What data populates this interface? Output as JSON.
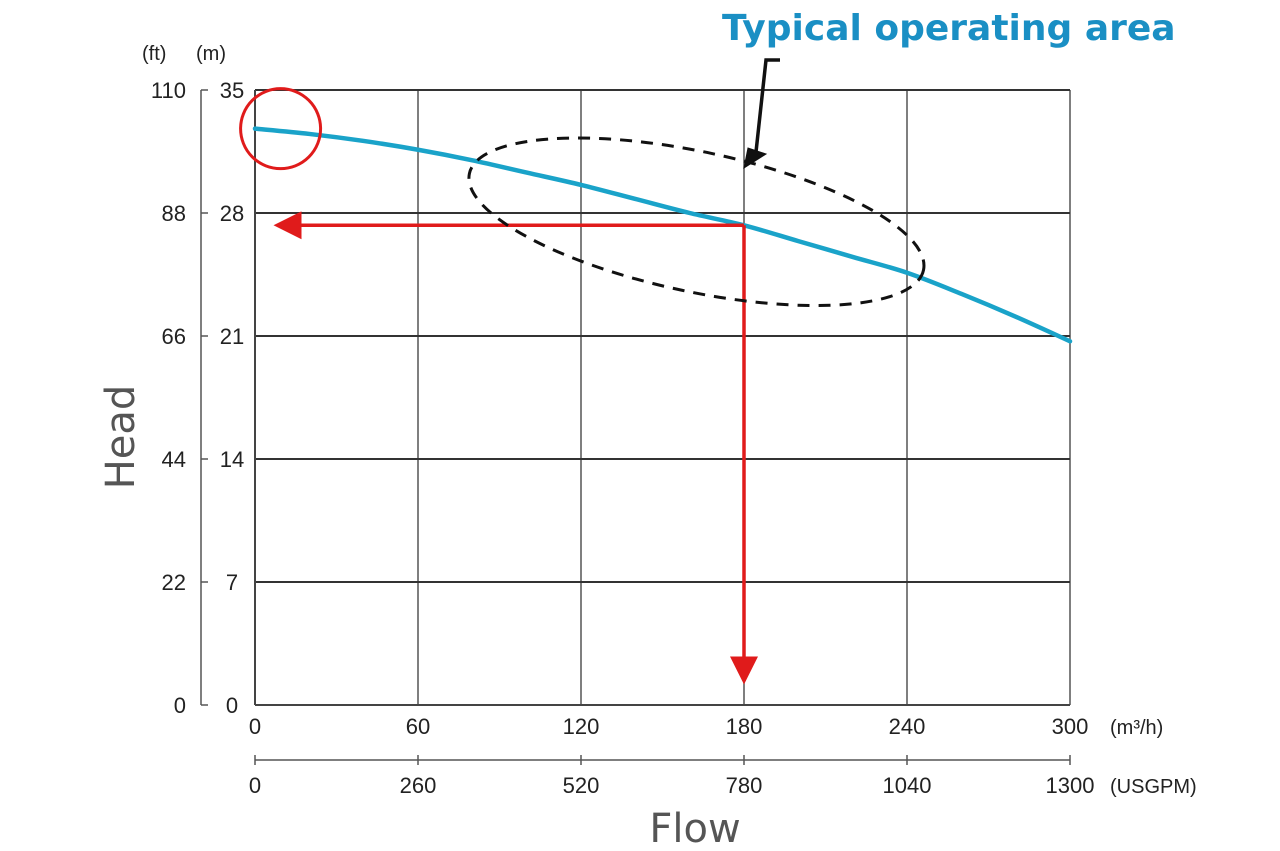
{
  "chart_data": {
    "type": "line",
    "title": "",
    "xlabel": "Flow",
    "ylabel": "Head",
    "x_unit_primary": "(m³/h)",
    "x_unit_secondary": "(USGPM)",
    "y_unit_primary": "(m)",
    "y_unit_secondary": "(ft)",
    "x_ticks_primary": [
      "0",
      "60",
      "120",
      "180",
      "240",
      "300"
    ],
    "x_ticks_secondary": [
      "0",
      "260",
      "520",
      "780",
      "1040",
      "1300"
    ],
    "y_ticks_primary": [
      "0",
      "7",
      "14",
      "21",
      "28",
      "35"
    ],
    "y_ticks_secondary": [
      "0",
      "22",
      "44",
      "66",
      "88",
      "110"
    ],
    "xlim": [
      0,
      300
    ],
    "ylim": [
      0,
      35
    ],
    "grid": true,
    "series": [
      {
        "color": "#1aa3c9",
        "x": [
          0,
          20,
          40,
          60,
          80,
          100,
          120,
          140,
          160,
          180,
          200,
          220,
          240,
          260,
          280,
          300
        ],
        "y": [
          32.8,
          32.5,
          32.1,
          31.6,
          31.0,
          30.3,
          29.6,
          28.8,
          28.0,
          27.3,
          26.4,
          25.5,
          24.6,
          23.4,
          22.1,
          20.7
        ]
      }
    ],
    "operating_point": {
      "flow": 180,
      "head": 27.3,
      "color": "#e01b1b"
    },
    "annotations": {
      "operating_area_label": "Typical operating area",
      "operating_area_color": "#1a8fc4",
      "shutoff_marker": {
        "x": 5,
        "y": 32.8,
        "color": "#e01b1b"
      },
      "operating_area_ellipse": {
        "x": [
          80,
          245
        ],
        "y": [
          22.5,
          32.5
        ]
      }
    }
  }
}
